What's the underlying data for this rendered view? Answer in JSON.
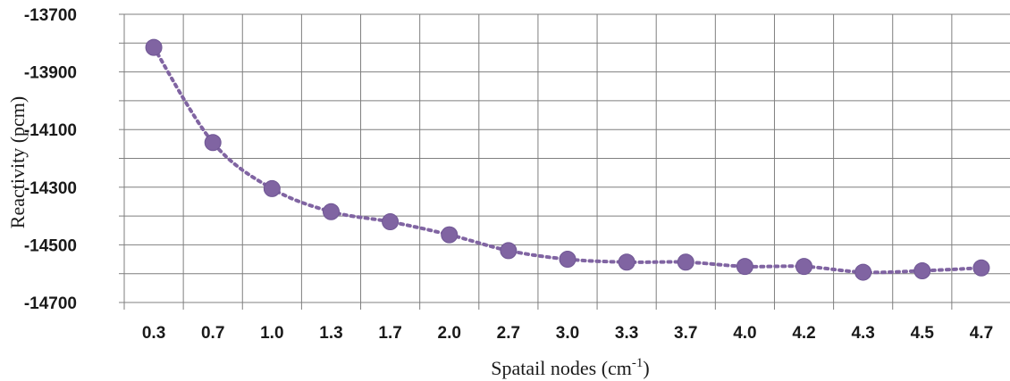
{
  "chart_data": {
    "type": "line",
    "xlabel": "Spatail nodes (cm",
    "xlabel_sup": "-1",
    "xlabel_end": ")",
    "ylabel": "Reactivity (pcm)",
    "categories": [
      "0.3",
      "0.7",
      "1.0",
      "1.3",
      "1.7",
      "2.0",
      "2.7",
      "3.0",
      "3.3",
      "3.7",
      "4.0",
      "4.2",
      "4.3",
      "4.5",
      "4.7"
    ],
    "series": [
      {
        "values": [
          -13815,
          -14145,
          -14305,
          -14385,
          -14420,
          -14465,
          -14520,
          -14550,
          -14560,
          -14560,
          -14575,
          -14575,
          -14595,
          -14590,
          -14580
        ]
      }
    ],
    "ylim": [
      -14700,
      -13700
    ],
    "yticks": [
      "-13700",
      "-13900",
      "-14100",
      "-14300",
      "-14500",
      "-14700"
    ],
    "grid": true,
    "marker": "circle",
    "line_style": "dotted",
    "series_color": "#8064a2"
  }
}
